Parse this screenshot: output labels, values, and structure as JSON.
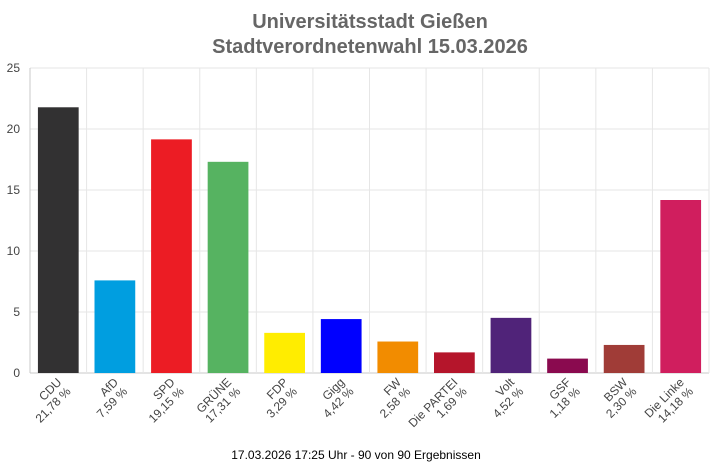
{
  "chart_data": {
    "type": "bar",
    "title_line1": "Universitätsstadt Gießen",
    "title_line2": "Stadtverordnetenwahl 15.03.2026",
    "ylim": [
      0,
      25
    ],
    "yticks": [
      "0",
      "5",
      "10",
      "15",
      "20",
      "25"
    ],
    "grid": true,
    "categories": [
      "CDU",
      "AfD",
      "SPD",
      "GRÜNE",
      "FDP",
      "Gigg",
      "FW",
      "Die PARTEI",
      "Volt",
      "GSF",
      "BSW",
      "Die Linke"
    ],
    "value_labels": [
      "21,78 %",
      "7,59 %",
      "19,15 %",
      "17,31 %",
      "3,29 %",
      "4,42 %",
      "2,58 %",
      "1,69 %",
      "4,52 %",
      "1,18 %",
      "2,30 %",
      "14,18 %"
    ],
    "values": [
      21.78,
      7.59,
      19.15,
      17.31,
      3.29,
      4.42,
      2.58,
      1.69,
      4.52,
      1.18,
      2.3,
      14.18
    ],
    "colors": [
      "#323132",
      "#009ee0",
      "#ec1c24",
      "#56b361",
      "#ffed00",
      "#0000ff",
      "#f28c00",
      "#b5152b",
      "#502379",
      "#8a0a4f",
      "#a03c37",
      "#d01e5e"
    ]
  },
  "footer": "17.03.2026 17:25 Uhr - 90 von 90 Ergebnissen"
}
